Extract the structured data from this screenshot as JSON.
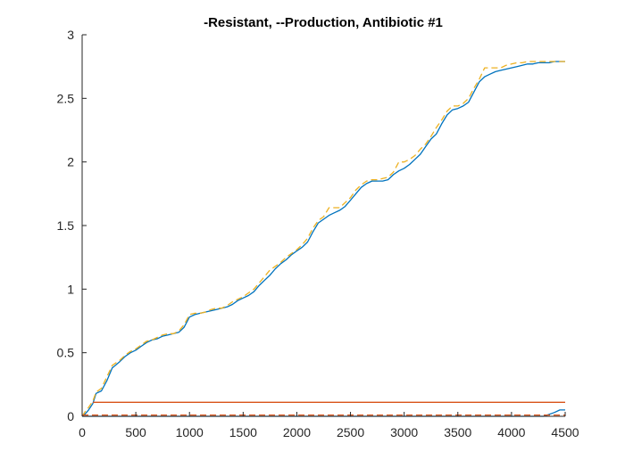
{
  "chart_data": {
    "type": "line",
    "title": "-Resistant, --Production, Antibiotic #1",
    "xlabel": "",
    "ylabel": "",
    "xlim": [
      0,
      4500
    ],
    "ylim": [
      0,
      3
    ],
    "xticks": [
      0,
      500,
      1000,
      1500,
      2000,
      2500,
      3000,
      3500,
      4000,
      4500
    ],
    "yticks": [
      0,
      0.5,
      1,
      1.5,
      2,
      2.5,
      3
    ],
    "xtick_labels": [
      "0",
      "500",
      "1000",
      "1500",
      "2000",
      "2500",
      "3000",
      "3500",
      "4000",
      "4500"
    ],
    "ytick_labels": [
      "0",
      "0.5",
      "1",
      "1.5",
      "2",
      "2.5",
      "3"
    ],
    "grid": false,
    "legend": "none",
    "series": [
      {
        "color": "#0072BD",
        "style": "solid",
        "x": [
          0,
          30,
          60,
          100,
          130,
          180,
          230,
          280,
          350,
          400,
          450,
          500,
          550,
          600,
          650,
          700,
          750,
          800,
          850,
          900,
          950,
          1000,
          1050,
          1100,
          1150,
          1200,
          1250,
          1300,
          1350,
          1400,
          1450,
          1500,
          1550,
          1600,
          1650,
          1700,
          1750,
          1800,
          1850,
          1900,
          1950,
          2000,
          2050,
          2100,
          2150,
          2200,
          2250,
          2300,
          2350,
          2400,
          2450,
          2500,
          2550,
          2600,
          2650,
          2700,
          2750,
          2800,
          2850,
          2900,
          2950,
          3000,
          3050,
          3100,
          3150,
          3200,
          3250,
          3300,
          3350,
          3400,
          3450,
          3500,
          3550,
          3600,
          3650,
          3700,
          3750,
          3800,
          3850,
          3900,
          3950,
          4000,
          4050,
          4100,
          4150,
          4200,
          4250,
          4300,
          4350,
          4400,
          4450,
          4500
        ],
        "y": [
          0,
          0.02,
          0.05,
          0.1,
          0.18,
          0.2,
          0.28,
          0.38,
          0.43,
          0.47,
          0.5,
          0.52,
          0.55,
          0.58,
          0.6,
          0.61,
          0.63,
          0.64,
          0.65,
          0.66,
          0.7,
          0.78,
          0.8,
          0.81,
          0.82,
          0.83,
          0.84,
          0.85,
          0.86,
          0.88,
          0.91,
          0.93,
          0.95,
          0.98,
          1.03,
          1.07,
          1.11,
          1.16,
          1.2,
          1.23,
          1.27,
          1.3,
          1.33,
          1.37,
          1.45,
          1.52,
          1.55,
          1.58,
          1.6,
          1.62,
          1.65,
          1.7,
          1.75,
          1.8,
          1.83,
          1.85,
          1.85,
          1.85,
          1.86,
          1.9,
          1.93,
          1.95,
          1.98,
          2.02,
          2.06,
          2.12,
          2.18,
          2.22,
          2.3,
          2.37,
          2.41,
          2.42,
          2.44,
          2.47,
          2.55,
          2.63,
          2.67,
          2.69,
          2.71,
          2.72,
          2.73,
          2.74,
          2.75,
          2.76,
          2.77,
          2.77,
          2.78,
          2.78,
          2.78,
          2.79,
          2.79,
          2.79
        ]
      },
      {
        "color": "#EDB120",
        "style": "dashed",
        "x": [
          0,
          30,
          60,
          100,
          130,
          180,
          230,
          280,
          350,
          400,
          450,
          500,
          550,
          600,
          650,
          700,
          750,
          800,
          850,
          900,
          950,
          1000,
          1050,
          1100,
          1150,
          1200,
          1250,
          1300,
          1350,
          1400,
          1450,
          1500,
          1550,
          1600,
          1650,
          1700,
          1750,
          1800,
          1850,
          1900,
          1950,
          2000,
          2050,
          2100,
          2150,
          2200,
          2250,
          2300,
          2350,
          2400,
          2450,
          2500,
          2550,
          2600,
          2650,
          2700,
          2750,
          2800,
          2850,
          2900,
          2950,
          3000,
          3050,
          3100,
          3150,
          3200,
          3250,
          3300,
          3350,
          3400,
          3450,
          3500,
          3550,
          3600,
          3650,
          3700,
          3750,
          3800,
          3850,
          3900,
          3950,
          4000,
          4050,
          4100,
          4150,
          4200,
          4250,
          4300,
          4350,
          4400,
          4450,
          4500
        ],
        "y": [
          0,
          0.04,
          0.07,
          0.12,
          0.19,
          0.22,
          0.31,
          0.4,
          0.44,
          0.48,
          0.51,
          0.53,
          0.56,
          0.59,
          0.6,
          0.62,
          0.64,
          0.65,
          0.65,
          0.67,
          0.72,
          0.8,
          0.81,
          0.81,
          0.82,
          0.84,
          0.85,
          0.85,
          0.87,
          0.9,
          0.92,
          0.94,
          0.97,
          1.0,
          1.05,
          1.1,
          1.15,
          1.18,
          1.21,
          1.25,
          1.28,
          1.31,
          1.35,
          1.4,
          1.48,
          1.54,
          1.57,
          1.64,
          1.64,
          1.64,
          1.68,
          1.72,
          1.78,
          1.82,
          1.85,
          1.86,
          1.86,
          1.87,
          1.88,
          1.92,
          2.0,
          2.0,
          2.02,
          2.05,
          2.1,
          2.14,
          2.2,
          2.27,
          2.33,
          2.4,
          2.44,
          2.44,
          2.46,
          2.5,
          2.58,
          2.65,
          2.74,
          2.74,
          2.74,
          2.74,
          2.76,
          2.77,
          2.78,
          2.78,
          2.79,
          2.79,
          2.79,
          2.79,
          2.79,
          2.79,
          2.79,
          2.79
        ]
      },
      {
        "color": "#0072BD",
        "style": "solid",
        "x": [
          0,
          4300,
          4400,
          4450,
          4500
        ],
        "y": [
          0,
          0,
          0.03,
          0.05,
          0.05
        ]
      },
      {
        "color": "#D95319",
        "style": "solid",
        "x": [
          100,
          4500
        ],
        "y": [
          0.11,
          0.11
        ]
      },
      {
        "color": "#D95319",
        "style": "dashed",
        "x": [
          0,
          4500
        ],
        "y": [
          0.01,
          0.01
        ]
      }
    ]
  }
}
